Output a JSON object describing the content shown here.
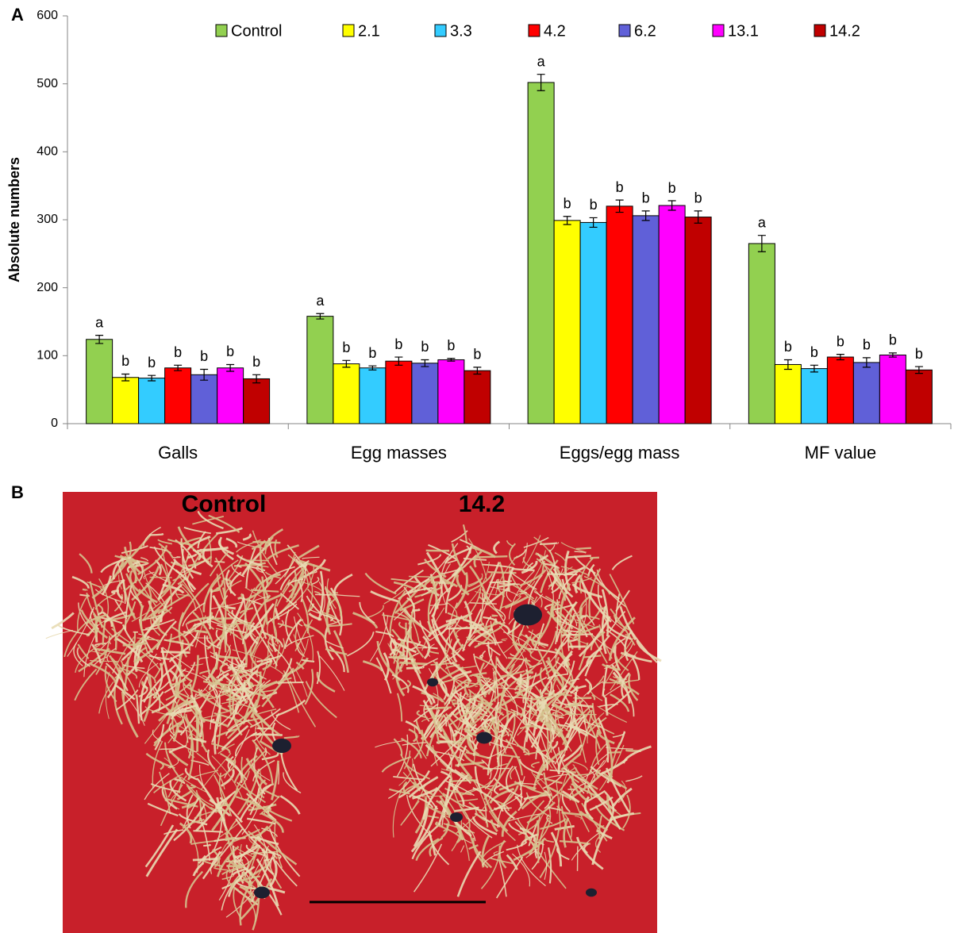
{
  "chart_data": {
    "type": "bar",
    "panel_label": "A",
    "y_label": "Absolute numbers",
    "categories": [
      "Galls",
      "Egg masses",
      "Eggs/egg mass",
      "MF value"
    ],
    "ylim": [
      0,
      600
    ],
    "yticks": [
      0,
      100,
      200,
      300,
      400,
      500,
      600
    ],
    "series": [
      {
        "name": "Control",
        "color": "#92d050",
        "values": [
          124,
          158,
          502,
          265
        ],
        "errors": [
          6,
          4,
          12,
          12
        ],
        "letters": [
          "a",
          "a",
          "a",
          "a"
        ]
      },
      {
        "name": "2.1",
        "color": "#ffff00",
        "values": [
          68,
          88,
          299,
          87
        ],
        "errors": [
          5,
          5,
          6,
          7
        ],
        "letters": [
          "b",
          "b",
          "b",
          "b"
        ]
      },
      {
        "name": "3.3",
        "color": "#33ccff",
        "values": [
          67,
          82,
          296,
          81
        ],
        "errors": [
          4,
          3,
          7,
          5
        ],
        "letters": [
          "b",
          "b",
          "b",
          "b"
        ]
      },
      {
        "name": "4.2",
        "color": "#ff0000",
        "values": [
          82,
          92,
          320,
          98
        ],
        "errors": [
          4,
          6,
          9,
          4
        ],
        "letters": [
          "b",
          "b",
          "b",
          "b"
        ]
      },
      {
        "name": "6.2",
        "color": "#6060d8",
        "values": [
          72,
          89,
          306,
          90
        ],
        "errors": [
          8,
          5,
          7,
          7
        ],
        "letters": [
          "b",
          "b",
          "b",
          "b"
        ]
      },
      {
        "name": "13.1",
        "color": "#ff00ff",
        "values": [
          82,
          94,
          321,
          101
        ],
        "errors": [
          5,
          2,
          7,
          3
        ],
        "letters": [
          "b",
          "b",
          "b",
          "b"
        ]
      },
      {
        "name": "14.2",
        "color": "#c00000",
        "values": [
          66,
          78,
          304,
          79
        ],
        "errors": [
          6,
          5,
          9,
          5
        ],
        "letters": [
          "b",
          "b",
          "b",
          "b"
        ]
      }
    ]
  },
  "photo": {
    "panel_label": "B",
    "labels": [
      "Control",
      "14.2"
    ]
  }
}
